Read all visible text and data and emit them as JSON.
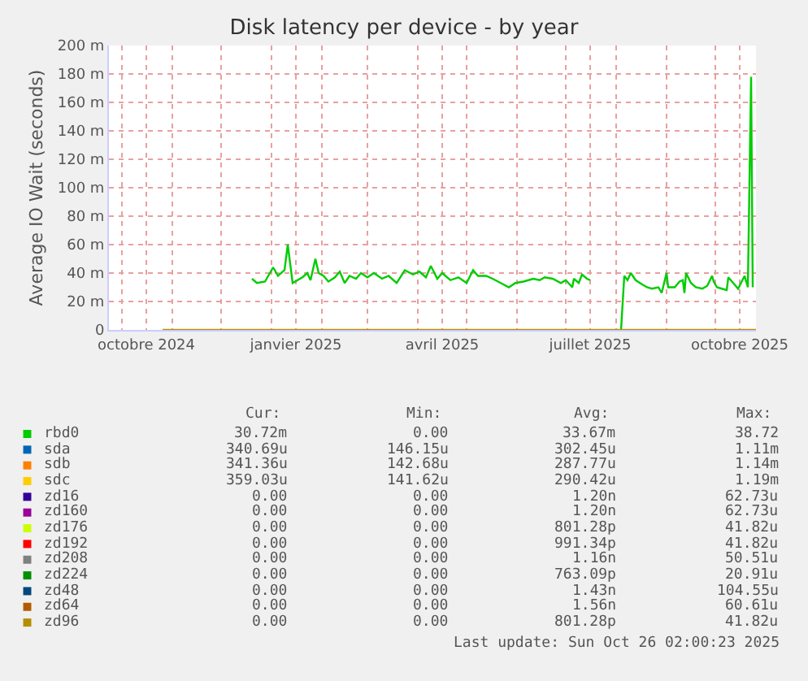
{
  "chart_data": {
    "type": "line",
    "title": "Disk latency per device - by year",
    "ylabel": "Average IO Wait (seconds)",
    "x": [
      "2024-12-20",
      "2024-12-23",
      "2024-12-28",
      "2025-01-02",
      "2025-01-05",
      "2025-01-09",
      "2025-01-11",
      "2025-01-14",
      "2025-01-20",
      "2025-01-23",
      "2025-01-25",
      "2025-01-28",
      "2025-01-30",
      "2025-02-02",
      "2025-02-05",
      "2025-02-09",
      "2025-02-12",
      "2025-02-15",
      "2025-02-18",
      "2025-02-22",
      "2025-02-25",
      "2025-03-01",
      "2025-03-05",
      "2025-03-10",
      "2025-03-14",
      "2025-03-19",
      "2025-03-24",
      "2025-03-29",
      "2025-04-02",
      "2025-04-06",
      "2025-04-09",
      "2025-04-13",
      "2025-04-16",
      "2025-04-21",
      "2025-04-26",
      "2025-05-01",
      "2025-05-05",
      "2025-05-08",
      "2025-05-13",
      "2025-05-17",
      "2025-05-22",
      "2025-05-27",
      "2025-05-31",
      "2025-06-05",
      "2025-06-11",
      "2025-06-15",
      "2025-06-18",
      "2025-06-23",
      "2025-06-28",
      "2025-07-01",
      "2025-07-05",
      "2025-07-06",
      "2025-07-09",
      "2025-07-11",
      "2025-07-14",
      "2025-07-16",
      "2025-07-25",
      "2025-08-04",
      "2025-08-06",
      "2025-08-08",
      "2025-08-10",
      "2025-08-13",
      "2025-08-17",
      "2025-08-20",
      "2025-08-23",
      "2025-08-27",
      "2025-08-29",
      "2025-09-01",
      "2025-09-02",
      "2025-09-06",
      "2025-09-09",
      "2025-09-11",
      "2025-09-12",
      "2025-09-13",
      "2025-09-16",
      "2025-09-19",
      "2025-09-23",
      "2025-09-26",
      "2025-09-29",
      "2025-09-30",
      "2025-10-02",
      "2025-10-05",
      "2025-10-08",
      "2025-10-09",
      "2025-10-12",
      "2025-10-15",
      "2025-10-19",
      "2025-10-21",
      "2025-10-23",
      "2025-10-24"
    ],
    "series": [
      {
        "name": "rbd0",
        "color": "#00cc00",
        "values": [
          36,
          33,
          34,
          44,
          38,
          42,
          60,
          33,
          37,
          40,
          35,
          50,
          40,
          38,
          34,
          37,
          41,
          33,
          38,
          36,
          40,
          37,
          40,
          36,
          38,
          33,
          42,
          39,
          41,
          37,
          45,
          36,
          40,
          35,
          37,
          33,
          42,
          38,
          38,
          36,
          33,
          30,
          33,
          34,
          36,
          35,
          37,
          36,
          33,
          35,
          30,
          36,
          33,
          39,
          36,
          35,
          null,
          0,
          38,
          35,
          40,
          35,
          32,
          30,
          29,
          30,
          26,
          40,
          30,
          30,
          34,
          35,
          26,
          40,
          33,
          30,
          29,
          31,
          38,
          34,
          30,
          29,
          28,
          37,
          33,
          29,
          38,
          30,
          178,
          30
        ]
      },
      {
        "name": "sda",
        "color": "#0066b3",
        "values": [
          null,
          null,
          null,
          null,
          null,
          null,
          null,
          null,
          null,
          null,
          null,
          null,
          null,
          null,
          null,
          null,
          null,
          null,
          null,
          null,
          null,
          null,
          null,
          null,
          null,
          null,
          null,
          null,
          null,
          null,
          null,
          null,
          null,
          null,
          null,
          null,
          null,
          null,
          null,
          null,
          null,
          null,
          null,
          null,
          null,
          null,
          null,
          null,
          null,
          null,
          null,
          null,
          null,
          null,
          null,
          null,
          null,
          null,
          null,
          null,
          null,
          null,
          null,
          null,
          null,
          null,
          null,
          null,
          null,
          null,
          null,
          null,
          null,
          null,
          null,
          null,
          null,
          null,
          null,
          null,
          null,
          null,
          null,
          null,
          null,
          null,
          null,
          null,
          null,
          null
        ]
      },
      {
        "name": "sdb",
        "color": "#ff8000",
        "values": [
          null,
          null,
          null,
          null,
          null,
          null,
          null,
          null,
          null,
          null,
          null,
          null,
          null,
          null,
          null,
          null,
          null,
          null,
          null,
          null,
          null,
          null,
          null,
          null,
          null,
          null,
          null,
          null,
          null,
          null,
          null,
          null,
          null,
          null,
          null,
          null,
          null,
          null,
          null,
          null,
          null,
          null,
          null,
          null,
          null,
          null,
          null,
          null,
          null,
          null,
          null,
          null,
          null,
          null,
          null,
          null,
          null,
          null,
          null,
          null,
          null,
          null,
          null,
          null,
          null,
          null,
          null,
          null,
          null,
          null,
          null,
          null,
          null,
          null,
          null,
          null,
          null,
          null,
          null,
          null,
          null,
          null,
          null,
          null,
          null,
          null,
          null,
          null,
          null,
          null
        ]
      },
      {
        "name": "sdc",
        "color": "#ffcc00",
        "values": [
          null,
          null,
          null,
          null,
          null,
          null,
          null,
          null,
          null,
          null,
          null,
          null,
          null,
          null,
          null,
          null,
          null,
          null,
          null,
          null,
          null,
          null,
          null,
          null,
          null,
          null,
          null,
          null,
          null,
          null,
          null,
          null,
          null,
          null,
          null,
          null,
          null,
          null,
          null,
          null,
          null,
          null,
          null,
          null,
          null,
          null,
          null,
          null,
          null,
          null,
          null,
          null,
          null,
          null,
          null,
          null,
          null,
          null,
          null,
          null,
          null,
          null,
          null,
          null,
          null,
          null,
          null,
          null,
          null,
          null,
          null,
          null,
          null,
          null,
          null,
          null,
          null,
          null,
          null,
          null,
          null,
          null,
          null,
          null,
          null,
          null,
          null,
          null,
          null,
          null
        ]
      },
      {
        "name": "zd16",
        "color": "#330099",
        "values": [
          null,
          null,
          null,
          null,
          null,
          null,
          null,
          null,
          null,
          null,
          null,
          null,
          null,
          null,
          null,
          null,
          null,
          null,
          null,
          null,
          null,
          null,
          null,
          null,
          null,
          null,
          null,
          null,
          null,
          null,
          null,
          null,
          null,
          null,
          null,
          null,
          null,
          null,
          null,
          null,
          null,
          null,
          null,
          null,
          null,
          null,
          null,
          null,
          null,
          null,
          null,
          null,
          null,
          null,
          null,
          null,
          null,
          null,
          null,
          null,
          null,
          null,
          null,
          null,
          null,
          null,
          null,
          null,
          null,
          null,
          null,
          null,
          null,
          null,
          null,
          null,
          null,
          null,
          null,
          null,
          null,
          null,
          null,
          null,
          null,
          null,
          null,
          null,
          null,
          null
        ]
      },
      {
        "name": "zd160",
        "color": "#990099",
        "values": [
          null,
          null,
          null,
          null,
          null,
          null,
          null,
          null,
          null,
          null,
          null,
          null,
          null,
          null,
          null,
          null,
          null,
          null,
          null,
          null,
          null,
          null,
          null,
          null,
          null,
          null,
          null,
          null,
          null,
          null,
          null,
          null,
          null,
          null,
          null,
          null,
          null,
          null,
          null,
          null,
          null,
          null,
          null,
          null,
          null,
          null,
          null,
          null,
          null,
          null,
          null,
          null,
          null,
          null,
          null,
          null,
          null,
          null,
          null,
          null,
          null,
          null,
          null,
          null,
          null,
          null,
          null,
          null,
          null,
          null,
          null,
          null,
          null,
          null,
          null,
          null,
          null,
          null,
          null,
          null,
          null,
          null,
          null,
          null,
          null,
          null,
          null,
          null,
          null,
          null
        ]
      },
      {
        "name": "zd176",
        "color": "#ccff00",
        "values": [
          null,
          null,
          null,
          null,
          null,
          null,
          null,
          null,
          null,
          null,
          null,
          null,
          null,
          null,
          null,
          null,
          null,
          null,
          null,
          null,
          null,
          null,
          null,
          null,
          null,
          null,
          null,
          null,
          null,
          null,
          null,
          null,
          null,
          null,
          null,
          null,
          null,
          null,
          null,
          null,
          null,
          null,
          null,
          null,
          null,
          null,
          null,
          null,
          null,
          null,
          null,
          null,
          null,
          null,
          null,
          null,
          null,
          null,
          null,
          null,
          null,
          null,
          null,
          null,
          null,
          null,
          null,
          null,
          null,
          null,
          null,
          null,
          null,
          null,
          null,
          null,
          null,
          null,
          null,
          null,
          null,
          null,
          null,
          null,
          null,
          null,
          null,
          null,
          null,
          null
        ]
      },
      {
        "name": "zd192",
        "color": "#ff0000",
        "values": [
          null,
          null,
          null,
          null,
          null,
          null,
          null,
          null,
          null,
          null,
          null,
          null,
          null,
          null,
          null,
          null,
          null,
          null,
          null,
          null,
          null,
          null,
          null,
          null,
          null,
          null,
          null,
          null,
          null,
          null,
          null,
          null,
          null,
          null,
          null,
          null,
          null,
          null,
          null,
          null,
          null,
          null,
          null,
          null,
          null,
          null,
          null,
          null,
          null,
          null,
          null,
          null,
          null,
          null,
          null,
          null,
          null,
          null,
          null,
          null,
          null,
          null,
          null,
          null,
          null,
          null,
          null,
          null,
          null,
          null,
          null,
          null,
          null,
          null,
          null,
          null,
          null,
          null,
          null,
          null,
          null,
          null,
          null,
          null,
          null,
          null,
          null,
          null,
          null,
          null
        ]
      },
      {
        "name": "zd208",
        "color": "#808080",
        "values": [
          null,
          null,
          null,
          null,
          null,
          null,
          null,
          null,
          null,
          null,
          null,
          null,
          null,
          null,
          null,
          null,
          null,
          null,
          null,
          null,
          null,
          null,
          null,
          null,
          null,
          null,
          null,
          null,
          null,
          null,
          null,
          null,
          null,
          null,
          null,
          null,
          null,
          null,
          null,
          null,
          null,
          null,
          null,
          null,
          null,
          null,
          null,
          null,
          null,
          null,
          null,
          null,
          null,
          null,
          null,
          null,
          null,
          null,
          null,
          null,
          null,
          null,
          null,
          null,
          null,
          null,
          null,
          null,
          null,
          null,
          null,
          null,
          null,
          null,
          null,
          null,
          null,
          null,
          null,
          null,
          null,
          null,
          null,
          null,
          null,
          null,
          null,
          null,
          null,
          null
        ]
      },
      {
        "name": "zd224",
        "color": "#008f00",
        "values": [
          null,
          null,
          null,
          null,
          null,
          null,
          null,
          null,
          null,
          null,
          null,
          null,
          null,
          null,
          null,
          null,
          null,
          null,
          null,
          null,
          null,
          null,
          null,
          null,
          null,
          null,
          null,
          null,
          null,
          null,
          null,
          null,
          null,
          null,
          null,
          null,
          null,
          null,
          null,
          null,
          null,
          null,
          null,
          null,
          null,
          null,
          null,
          null,
          null,
          null,
          null,
          null,
          null,
          null,
          null,
          null,
          null,
          null,
          null,
          null,
          null,
          null,
          null,
          null,
          null,
          null,
          null,
          null,
          null,
          null,
          null,
          null,
          null,
          null,
          null,
          null,
          null,
          null,
          null,
          null,
          null,
          null,
          null,
          null,
          null,
          null,
          null,
          null,
          null,
          null
        ]
      },
      {
        "name": "zd48",
        "color": "#00487d",
        "values": [
          null,
          null,
          null,
          null,
          null,
          null,
          null,
          null,
          null,
          null,
          null,
          null,
          null,
          null,
          null,
          null,
          null,
          null,
          null,
          null,
          null,
          null,
          null,
          null,
          null,
          null,
          null,
          null,
          null,
          null,
          null,
          null,
          null,
          null,
          null,
          null,
          null,
          null,
          null,
          null,
          null,
          null,
          null,
          null,
          null,
          null,
          null,
          null,
          null,
          null,
          null,
          null,
          null,
          null,
          null,
          null,
          null,
          null,
          null,
          null,
          null,
          null,
          null,
          null,
          null,
          null,
          null,
          null,
          null,
          null,
          null,
          null,
          null,
          null,
          null,
          null,
          null,
          null,
          null,
          null,
          null,
          null,
          null,
          null,
          null,
          null,
          null,
          null,
          null,
          null
        ]
      },
      {
        "name": "zd64",
        "color": "#b35a00",
        "values": [
          null,
          null,
          null,
          null,
          null,
          null,
          null,
          null,
          null,
          null,
          null,
          null,
          null,
          null,
          null,
          null,
          null,
          null,
          null,
          null,
          null,
          null,
          null,
          null,
          null,
          null,
          null,
          null,
          null,
          null,
          null,
          null,
          null,
          null,
          null,
          null,
          null,
          null,
          null,
          null,
          null,
          null,
          null,
          null,
          null,
          null,
          null,
          null,
          null,
          null,
          null,
          null,
          null,
          null,
          null,
          null,
          null,
          null,
          null,
          null,
          null,
          null,
          null,
          null,
          null,
          null,
          null,
          null,
          null,
          null,
          null,
          null,
          null,
          null,
          null,
          null,
          null,
          null,
          null,
          null,
          null,
          null,
          null,
          null,
          null,
          null,
          null,
          null,
          null,
          null
        ]
      },
      {
        "name": "zd96",
        "color": "#b38f00",
        "x": [
          "2024-10-26",
          "2025-10-26"
        ],
        "values": [
          0,
          0
        ]
      }
    ],
    "xlim": [
      "2024-09-23",
      "2025-10-26"
    ],
    "xticks": [
      {
        "value": "2024-10-01",
        "label": null
      },
      {
        "value": "2024-10-16",
        "label": "octobre 2024"
      },
      {
        "value": "2024-11-01",
        "label": null
      },
      {
        "value": "2024-12-01",
        "label": null
      },
      {
        "value": "2025-01-01",
        "label": null
      },
      {
        "value": "2025-01-16",
        "label": "janvier 2025"
      },
      {
        "value": "2025-02-01",
        "label": null
      },
      {
        "value": "2025-03-01",
        "label": null
      },
      {
        "value": "2025-04-01",
        "label": null
      },
      {
        "value": "2025-04-16",
        "label": "avril 2025"
      },
      {
        "value": "2025-05-01",
        "label": null
      },
      {
        "value": "2025-06-01",
        "label": null
      },
      {
        "value": "2025-07-01",
        "label": null
      },
      {
        "value": "2025-07-16",
        "label": "juillet 2025"
      },
      {
        "value": "2025-08-01",
        "label": null
      },
      {
        "value": "2025-09-01",
        "label": null
      },
      {
        "value": "2025-10-01",
        "label": null
      },
      {
        "value": "2025-10-16",
        "label": "octobre 2025"
      }
    ],
    "ylim": [
      0,
      200
    ],
    "yticks": [
      0,
      {
        "value": 20,
        "label": "20 m"
      },
      {
        "value": 40,
        "label": "40 m"
      },
      {
        "value": 60,
        "label": "60 m"
      },
      {
        "value": 80,
        "label": "80 m"
      },
      {
        "value": 100,
        "label": "100 m"
      },
      {
        "value": 120,
        "label": "120 m"
      },
      {
        "value": 140,
        "label": "140 m"
      },
      {
        "value": 160,
        "label": "160 m"
      },
      {
        "value": 180,
        "label": "180 m"
      },
      {
        "value": 200,
        "label": "200 m"
      }
    ],
    "grid": true,
    "legend": "bottom",
    "marker": "none",
    "line_style": "solid",
    "annotations": [
      "Cur:",
      "Min:",
      "Avg:",
      "Max:",
      "30.72m",
      "0.00",
      "33.67m",
      "38.72",
      "340.69u",
      "146.15u",
      "302.45u",
      "1.11m",
      "341.36u",
      "142.68u",
      "287.77u",
      "1.14m",
      "359.03u",
      "141.62u",
      "290.42u",
      "1.19m",
      "0.00",
      "0.00",
      "1.20n",
      "62.73u",
      "0.00",
      "0.00",
      "1.20n",
      "62.73u",
      "0.00",
      "0.00",
      "801.28p",
      "41.82u",
      "0.00",
      "0.00",
      "991.34p",
      "41.82u",
      "0.00",
      "0.00",
      "1.16n",
      "50.51u",
      "0.00",
      "0.00",
      "763.09p",
      "20.91u",
      "0.00",
      "0.00",
      "1.43n",
      "104.55u",
      "0.00",
      "0.00",
      "1.56n",
      "60.61u",
      "0.00",
      "0.00",
      "801.28p",
      "41.82u",
      "Last update: Sun Oct 26 02:00:23 2025"
    ]
  }
}
